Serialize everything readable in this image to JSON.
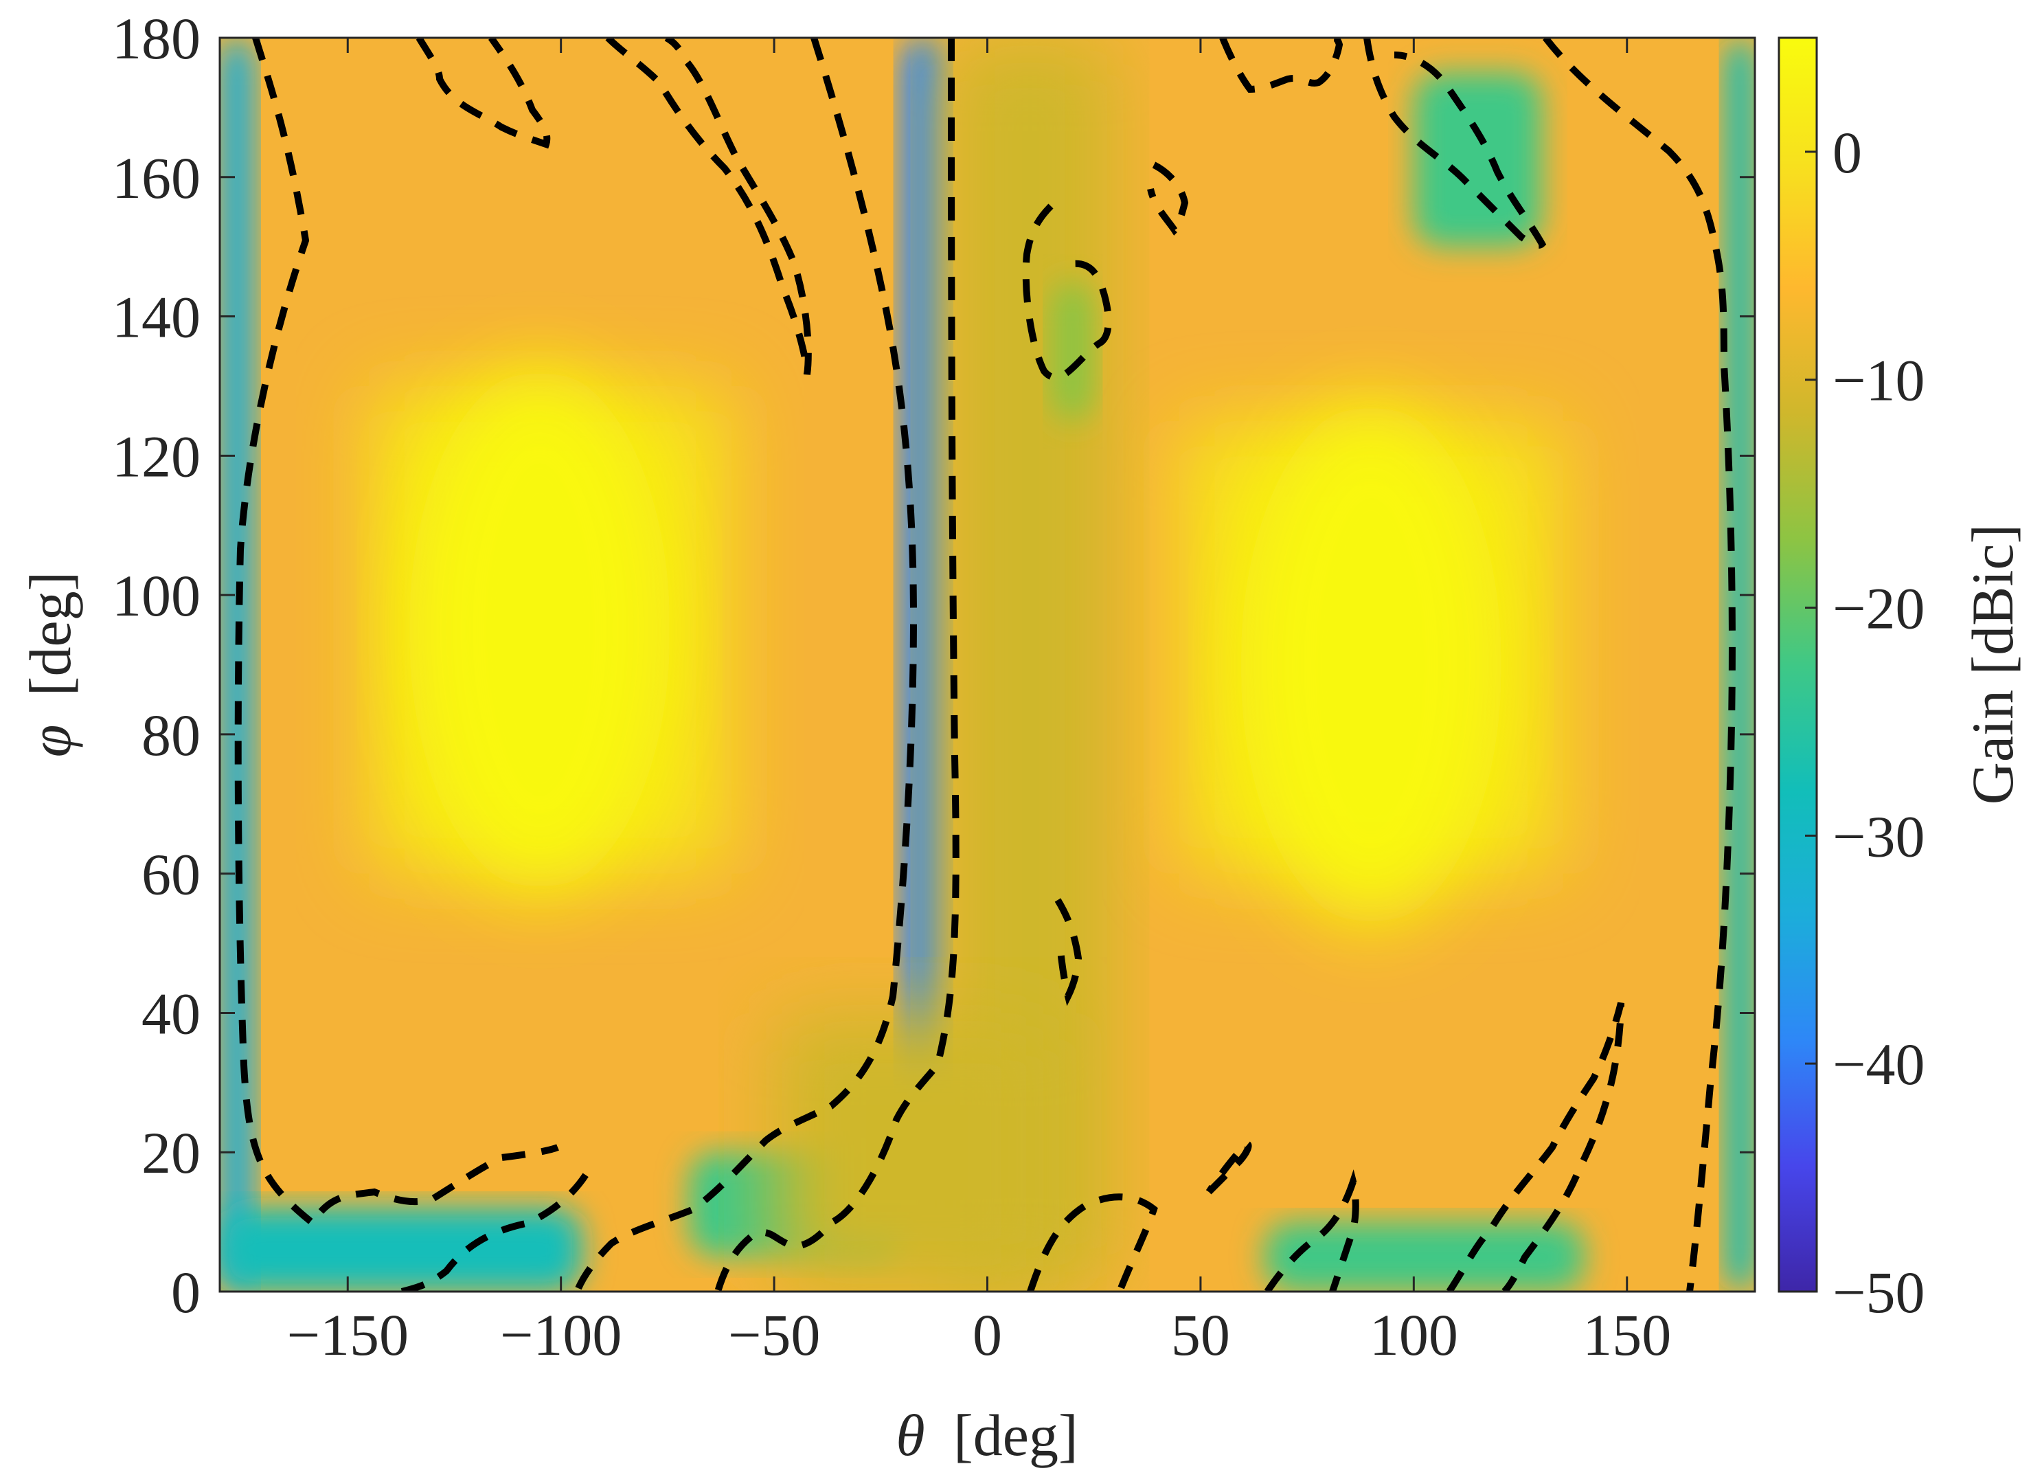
{
  "chart_data": {
    "type": "heatmap",
    "title": "",
    "xlabel_symbol": "θ",
    "xlabel_unit": "[deg]",
    "ylabel_symbol": "φ",
    "ylabel_unit": "[deg]",
    "colorbar_label": "Gain [dBic]",
    "xlim": [
      -180,
      180
    ],
    "ylim": [
      0,
      180
    ],
    "clim": [
      -50,
      5
    ],
    "x_ticks": [
      -150,
      -100,
      -50,
      0,
      50,
      100,
      150
    ],
    "x_tick_labels": [
      "−150",
      "−100",
      "−50",
      "0",
      "50",
      "100",
      "150"
    ],
    "y_ticks": [
      0,
      20,
      40,
      60,
      80,
      100,
      120,
      140,
      160,
      180
    ],
    "y_tick_labels": [
      "0",
      "20",
      "40",
      "60",
      "80",
      "100",
      "120",
      "140",
      "160",
      "180"
    ],
    "colorbar_ticks": [
      -50,
      -40,
      -30,
      -20,
      -10,
      0
    ],
    "colorbar_tick_labels": [
      "−50",
      "−40",
      "−30",
      "−20",
      "−10",
      "0"
    ],
    "colormap": "parula",
    "colormap_stops": [
      "#3e26a8",
      "#4746eb",
      "#2e87f7",
      "#1cadda",
      "#12beb9",
      "#3fc886",
      "#8dc443",
      "#cfb72c",
      "#feb82e",
      "#f7e11e",
      "#f9fb0e"
    ],
    "main_lobes": [
      {
        "theta": -105,
        "phi": 95,
        "peak_gain": 3
      },
      {
        "theta": 90,
        "phi": 90,
        "peak_gain": 3
      }
    ],
    "contour_style": "black dashed",
    "contour_note": "dashed contour outlines low-gain boundary regions"
  }
}
